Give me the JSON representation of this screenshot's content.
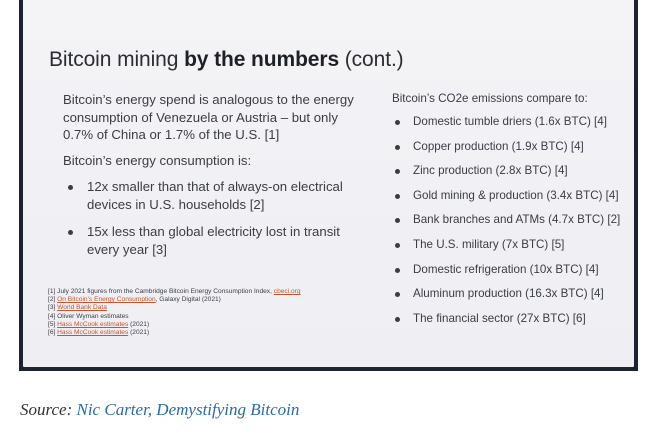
{
  "slide": {
    "title_regular": "Bitcoin mining ",
    "title_bold": "by the numbers",
    "title_suffix": " (cont.)",
    "left_para1": "Bitcoin’s energy spend is analogous to the energy consumption of Venezuela or Austria – but only 0.7% of China or 1.7% of the U.S. [1]",
    "left_para2": "Bitcoin’s energy consumption is:",
    "left_bullets": [
      "12x smaller than that of always-on electrical devices in U.S. households [2]",
      "15x less than global electricity lost in transit every year [3]"
    ],
    "footnotes": [
      {
        "prefix": "[1] July 2021 figures from the Cambridge Bitcoin Energy Consumption Index, ",
        "link": "cbeci.org",
        "suffix": ""
      },
      {
        "prefix": "[2] ",
        "link": "On Bitcoin’s Energy Consumption",
        "suffix": ", Galaxy Digital (2021)"
      },
      {
        "prefix": "[3] ",
        "link": "World Bank Data",
        "suffix": ""
      },
      {
        "prefix": "[4] Oliver Wyman estimates",
        "link": "",
        "suffix": ""
      },
      {
        "prefix": "[5] ",
        "link": "Hass McCook estimates",
        "suffix": " (2021)"
      },
      {
        "prefix": "[6] ",
        "link": "Hass McCook estimates",
        "suffix": " (2021)"
      }
    ],
    "right_heading": "Bitcoin’s CO2e emissions compare to:",
    "right_items": [
      "Domestic tumble driers (1.6x BTC) [4]",
      "Copper production (1.9x BTC) [4]",
      "Zinc production (2.8x BTC) [4]",
      "Gold mining & production (3.4x BTC) [4]",
      "Bank branches and ATMs (4.7x BTC) [2]",
      "The U.S. military (7x BTC) [5]",
      "Domestic refrigeration (10x BTC) [4]",
      "Aluminum production (16.3x BTC) [4]",
      "The financial sector (27x BTC) [6]"
    ]
  },
  "source": {
    "label": "Source: ",
    "link_text": "Nic Carter, Demystifying Bitcoin"
  },
  "colors": {
    "frame": "#1c2230",
    "link_footnote": "#c8542c",
    "link_source": "#2a6aa8"
  }
}
